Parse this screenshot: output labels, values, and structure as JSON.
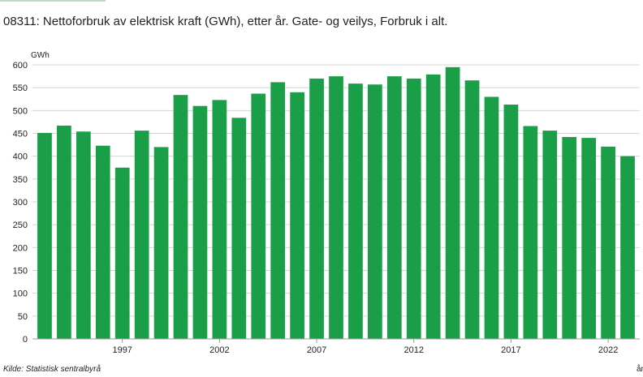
{
  "header": {
    "title": "08311: Nettoforbruk av elektrisk kraft (GWh), etter år. Gate- og veilys, Forbruk i alt."
  },
  "source": "Kilde:  Statistisk sentralbyrå",
  "colors": {
    "bar": "#1a9e48",
    "grid": "#d4d4d4",
    "axis": "#999999",
    "accent": "#b7dcc4"
  },
  "chart_data": {
    "type": "bar",
    "title": "08311: Nettoforbruk av elektrisk kraft (GWh), etter år. Gate- og veilys, Forbruk i alt.",
    "ylabel": "GWh",
    "xlabel": "år",
    "ylim": [
      0,
      600
    ],
    "y_ticks": [
      0,
      50,
      100,
      150,
      200,
      250,
      300,
      350,
      400,
      450,
      500,
      550,
      600
    ],
    "x_tick_labels": [
      "1997",
      "2002",
      "2007",
      "2012",
      "2017",
      "2022"
    ],
    "grid": true,
    "legend": "none",
    "categories": [
      "1993",
      "1994",
      "1995",
      "1996",
      "1997",
      "1998",
      "1999",
      "2000",
      "2001",
      "2002",
      "2003",
      "2004",
      "2005",
      "2006",
      "2007",
      "2008",
      "2009",
      "2010",
      "2011",
      "2012",
      "2013",
      "2014",
      "2015",
      "2016",
      "2017",
      "2018",
      "2019",
      "2020",
      "2021",
      "2022",
      "2023"
    ],
    "values": [
      451,
      467,
      454,
      423,
      375,
      456,
      420,
      534,
      510,
      523,
      484,
      537,
      562,
      540,
      570,
      575,
      559,
      557,
      575,
      570,
      579,
      595,
      566,
      530,
      513,
      466,
      456,
      442,
      440,
      421,
      400
    ]
  }
}
